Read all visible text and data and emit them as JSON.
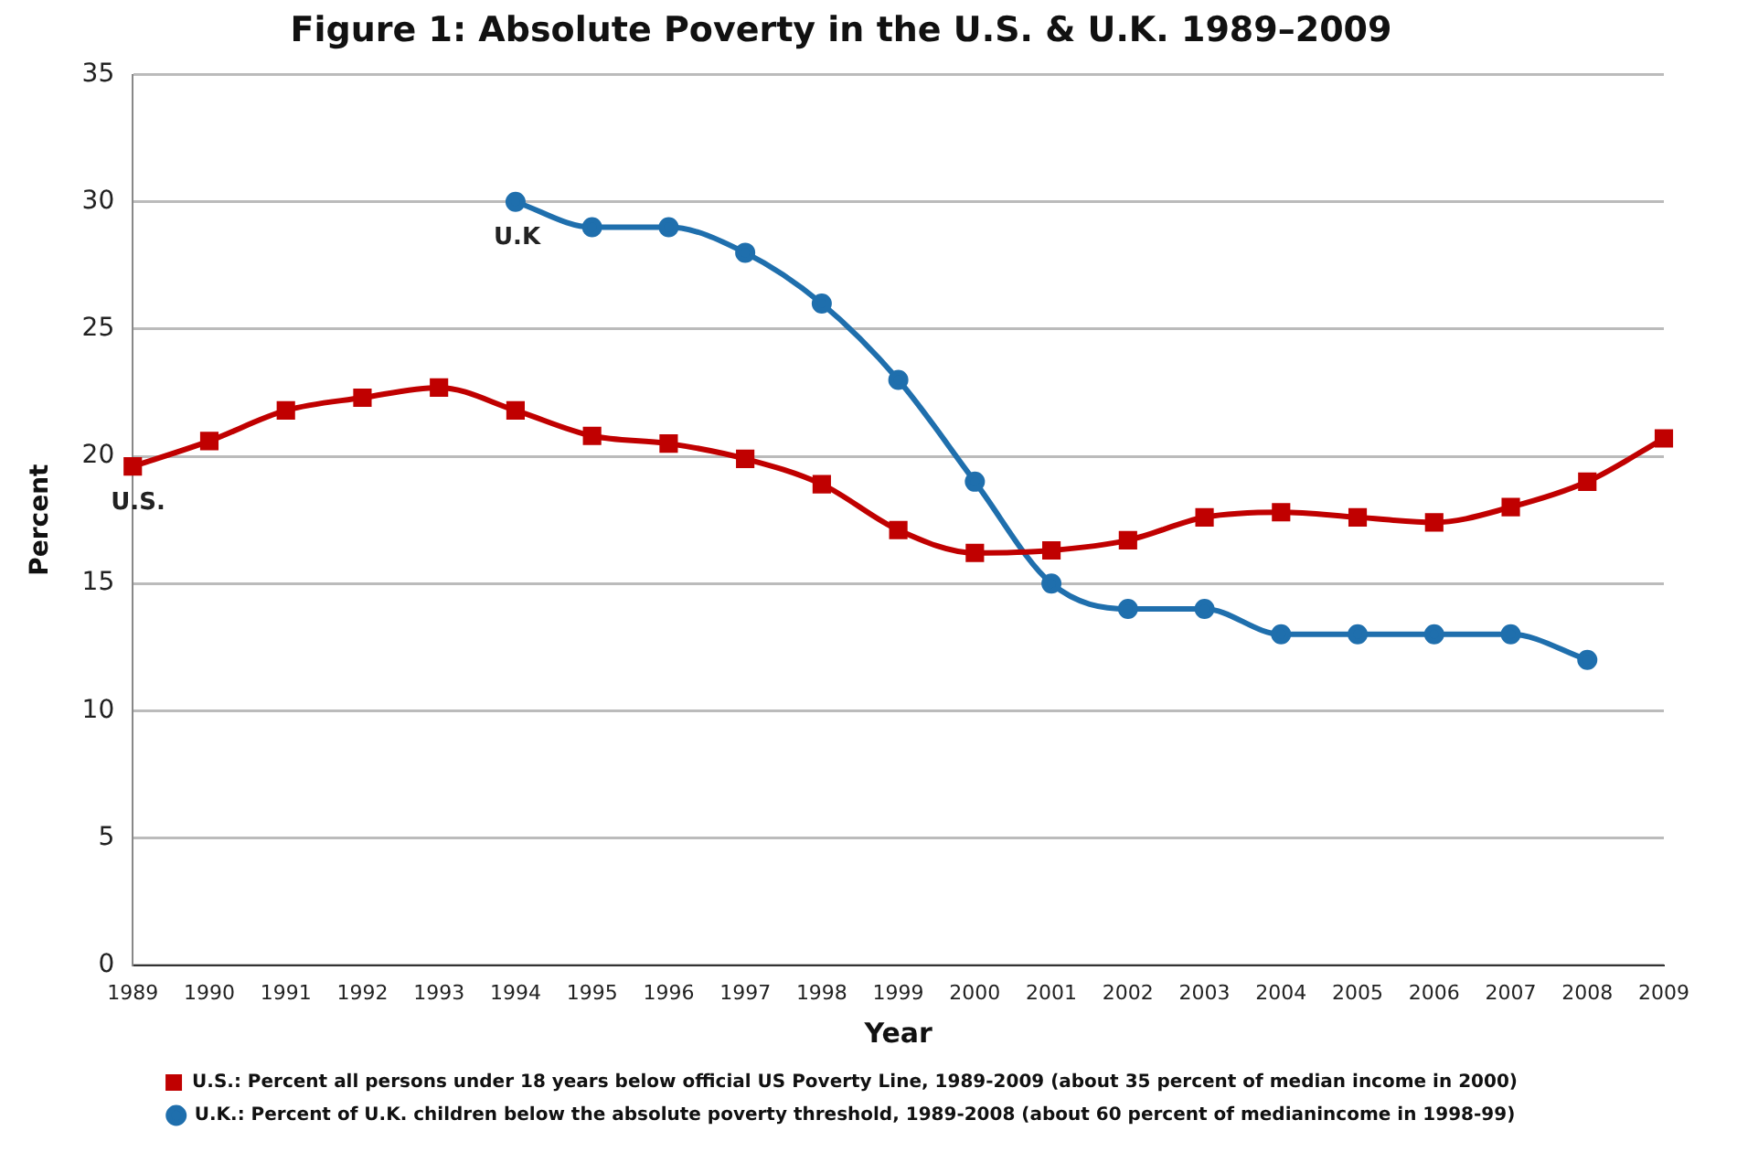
{
  "chart_data": {
    "type": "line",
    "title": "Figure 1: Absolute Poverty in the U.S. & U.K. 1989–2009",
    "xlabel": "Year",
    "ylabel": "Percent",
    "categories": [
      "1989",
      "1990",
      "1991",
      "1992",
      "1993",
      "1994",
      "1995",
      "1996",
      "1997",
      "1998",
      "1999",
      "2000",
      "2001",
      "2002",
      "2003",
      "2004",
      "2005",
      "2006",
      "2007",
      "2008",
      "2009"
    ],
    "series": [
      {
        "name": "U.S.: Percent all persons under 18 years below official US Poverty Line, 1989-2009 (about 35 percent of median income in 2000)",
        "color": "#c00000",
        "marker": "square",
        "values": [
          19.6,
          20.6,
          21.8,
          22.3,
          22.7,
          21.8,
          20.8,
          20.5,
          19.9,
          18.9,
          17.1,
          16.2,
          16.3,
          16.7,
          17.6,
          17.8,
          17.6,
          17.4,
          18.0,
          19.0,
          20.7
        ]
      },
      {
        "name": "U.K.: Percent of U.K. children below the absolute poverty threshold, 1989-2008 (about 60 percent of medianincome in 1998-99)",
        "color": "#1f6fad",
        "marker": "circle",
        "values": [
          null,
          null,
          null,
          null,
          null,
          30,
          29,
          29,
          28,
          26,
          23,
          19,
          15,
          14,
          14,
          13,
          13,
          13,
          13,
          12,
          null
        ]
      }
    ],
    "ylim": [
      0,
      35
    ],
    "yticks": [
      0,
      5,
      10,
      15,
      20,
      25,
      30,
      35
    ],
    "grid": "y",
    "legend": "bottom",
    "annotations": [
      "U.S.",
      "U.K"
    ]
  }
}
